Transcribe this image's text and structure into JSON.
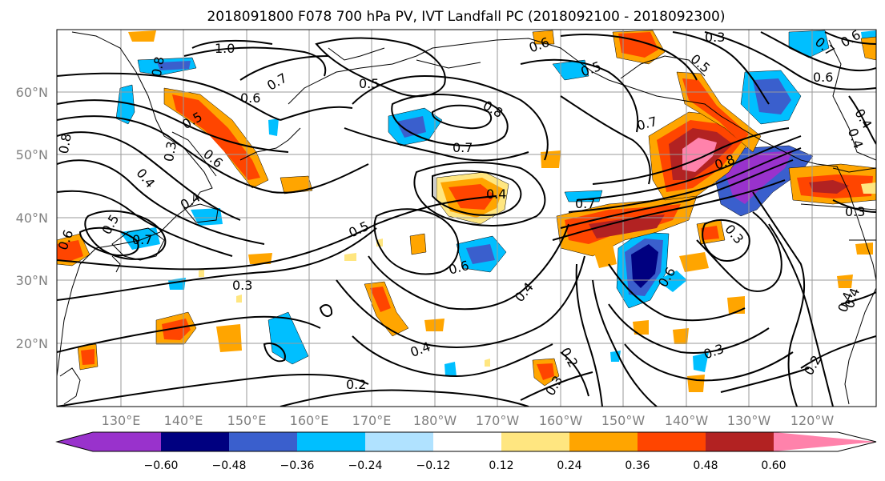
{
  "title": "2018091800 F078 700 hPa PV, IVT Landfall PC (2018092100 - 2018092300)",
  "lat_labels": [
    "60°N",
    "50°N",
    "40°N",
    "30°N",
    "20°N"
  ],
  "lon_labels": [
    "130°E",
    "140°E",
    "150°E",
    "160°E",
    "170°E",
    "180°W",
    "170°W",
    "160°W",
    "150°W",
    "140°W",
    "130°W",
    "120°W"
  ],
  "colorbar": {
    "ticks": [
      "−0.60",
      "−0.48",
      "−0.36",
      "−0.24",
      "−0.12",
      "0.12",
      "0.24",
      "0.36",
      "0.48",
      "0.60"
    ],
    "colors": [
      "#9932cc",
      "#000080",
      "#3a5fcd",
      "#00bfff",
      "#b0e2ff",
      "#ffffff",
      "#ffe680",
      "#ffa500",
      "#ff4500",
      "#b22222",
      "#ff82ab"
    ]
  },
  "contour_labels": [
    "1.0",
    "0.8",
    "0.7",
    "0.6",
    "0.5",
    "0.7",
    "0.8",
    "0.4",
    "0.5",
    "0.6",
    "0.5",
    "0.4",
    "0.3",
    "0.6",
    "0.4",
    "0.5",
    "0.7",
    "0.8",
    "0.6",
    "0.4",
    "0.4",
    "0.7",
    "0.5",
    "0.6",
    "0.3",
    "0.5",
    "0.7",
    "0.6",
    "0.6",
    "0.4",
    "0.3",
    "0.2",
    "0.2",
    "0.3",
    "0.3",
    "0.8",
    "0.3",
    "0.4",
    "0.3",
    "0.4",
    "0.2",
    "0.7",
    "0.6",
    "0.4"
  ]
}
